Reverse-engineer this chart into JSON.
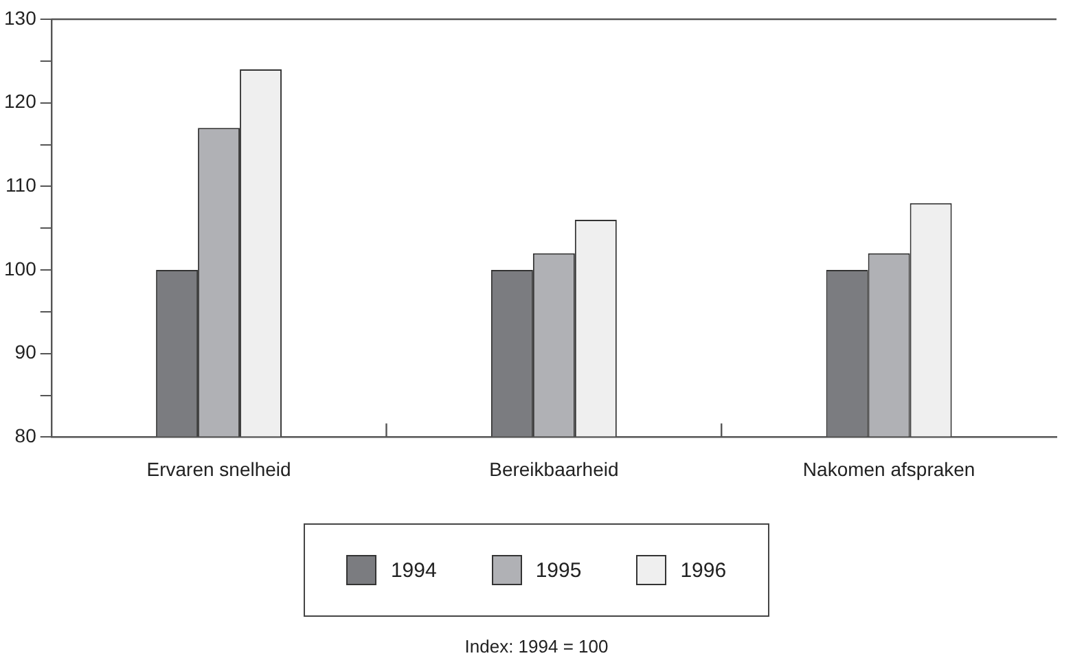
{
  "chart_data": {
    "type": "bar",
    "categories": [
      "Ervaren snelheid",
      "Bereikbaarheid",
      "Nakomen afspraken"
    ],
    "series": [
      {
        "name": "1994",
        "color": "#7b7c80",
        "values": [
          100,
          100,
          100
        ]
      },
      {
        "name": "1995",
        "color": "#b0b1b5",
        "values": [
          117,
          102,
          102
        ]
      },
      {
        "name": "1996",
        "color": "#efefef",
        "values": [
          124,
          106,
          108
        ]
      }
    ],
    "ylim": [
      80,
      130
    ],
    "yticks": [
      80,
      {
        "value": 85,
        "label": null
      },
      90,
      {
        "value": 95,
        "label": null
      },
      100,
      {
        "value": 105,
        "label": null
      },
      110,
      {
        "value": 115,
        "label": null
      },
      120,
      {
        "value": 125,
        "label": null
      },
      130
    ],
    "grid": false,
    "legend": "bottom",
    "annotations": [
      "Index: 1994 = 100"
    ]
  }
}
